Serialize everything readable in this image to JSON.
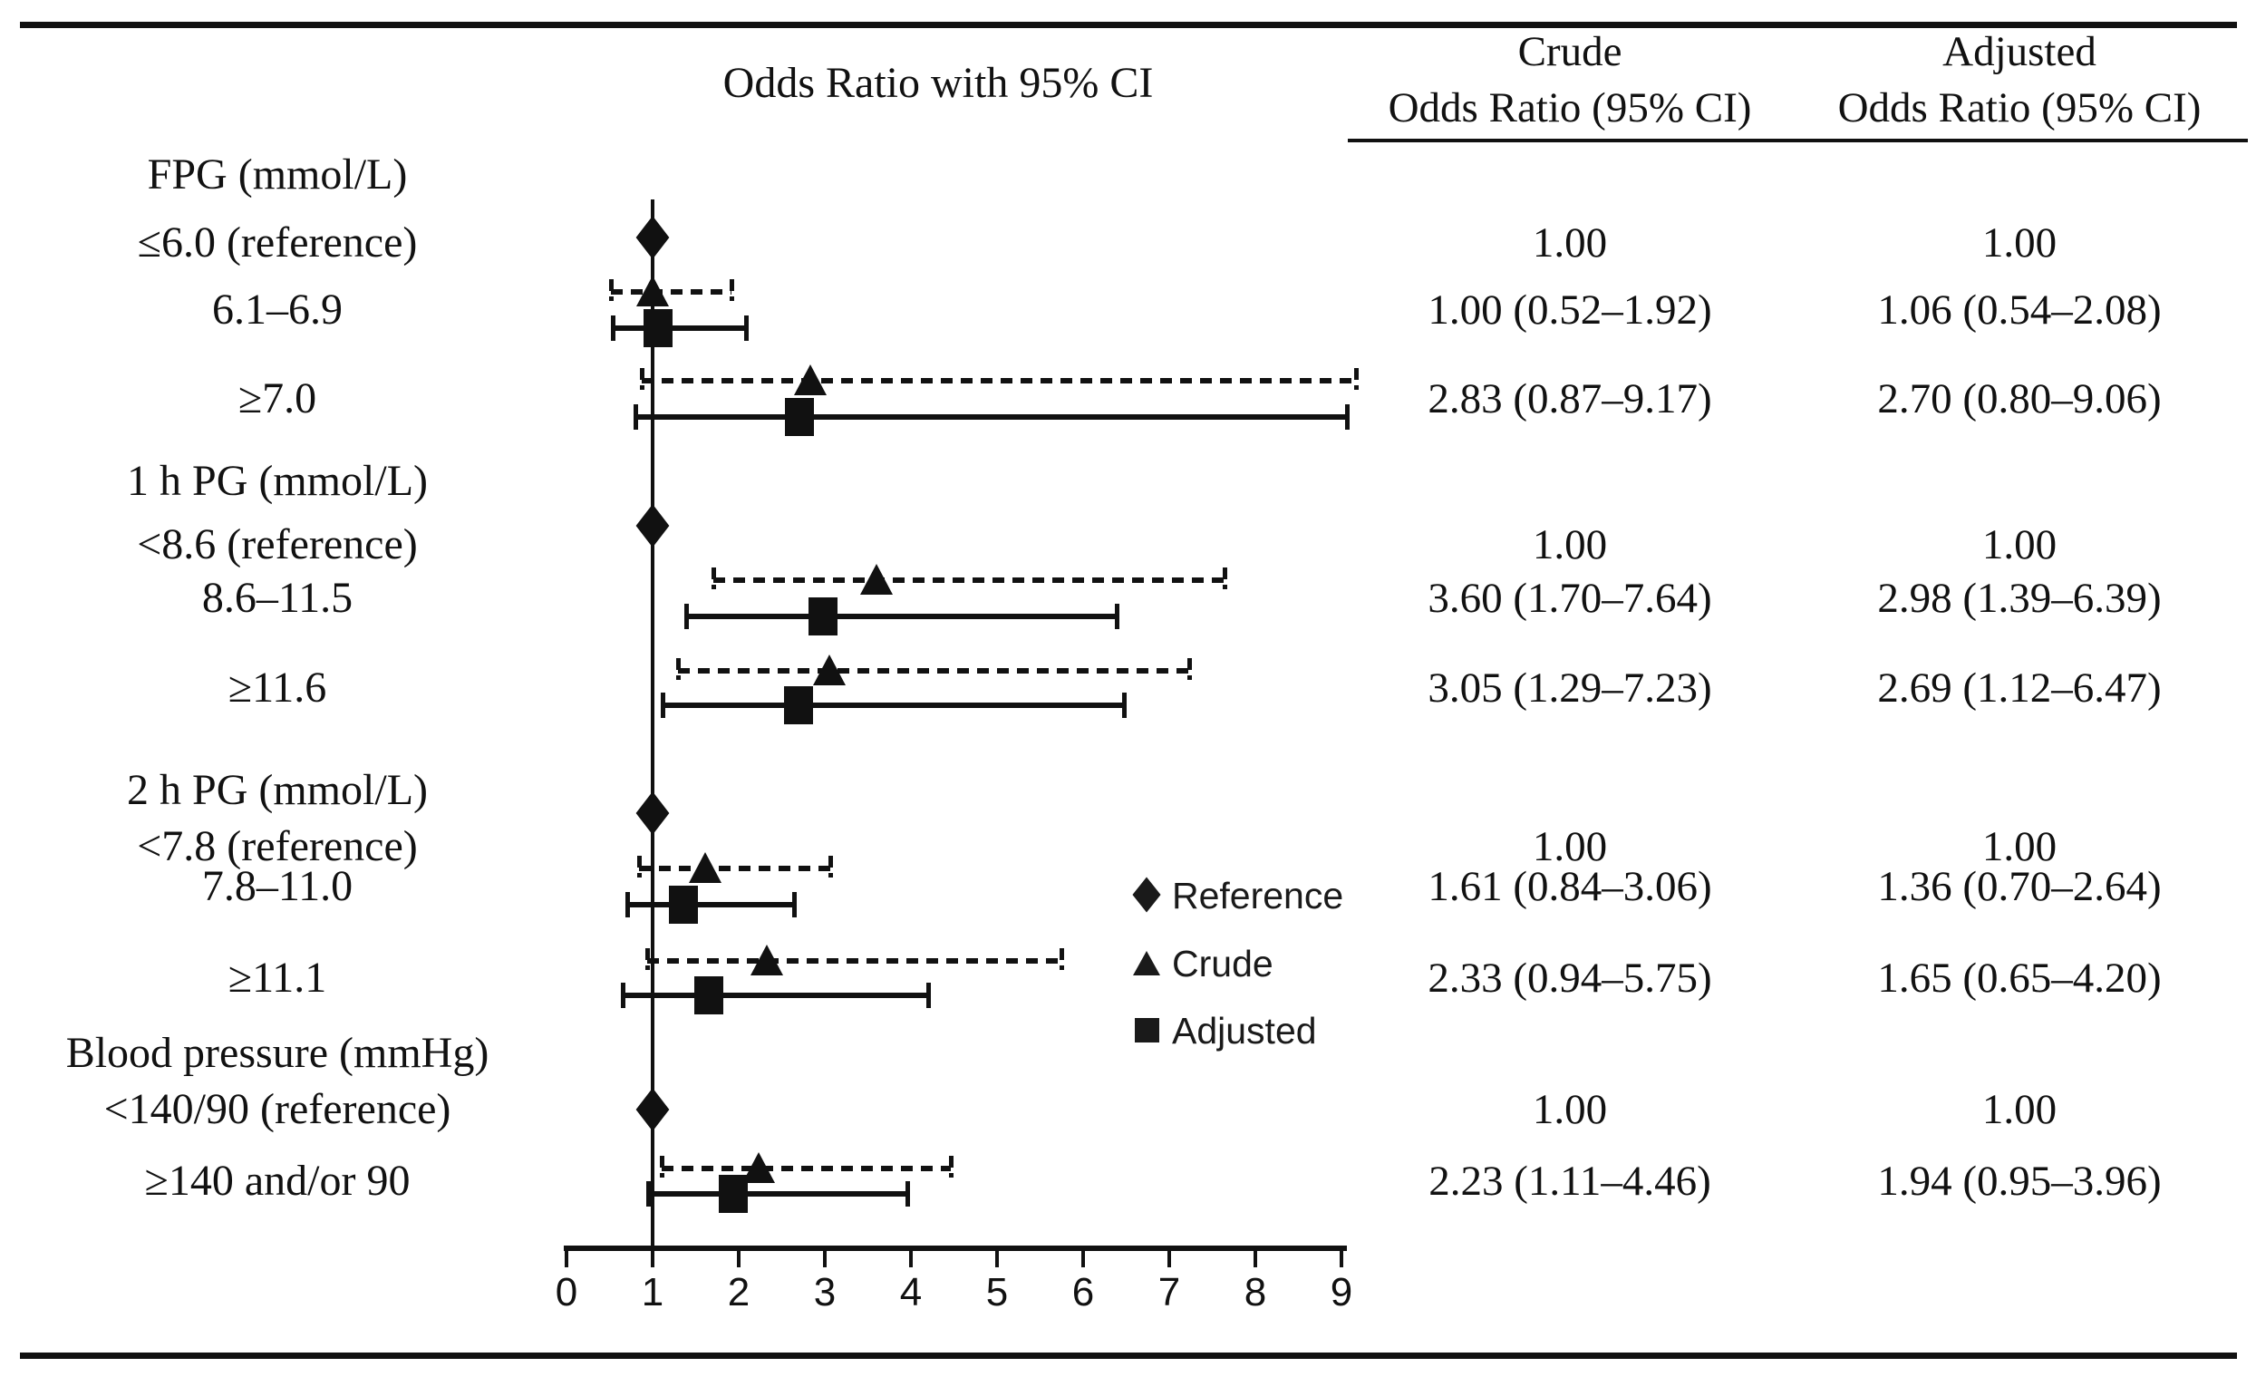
{
  "figure": {
    "title": "Odds Ratio with 95% CI"
  },
  "colors": {
    "ink": "#111111",
    "background": "#ffffff"
  },
  "chart_data": {
    "type": "forest",
    "title": "Odds Ratio with 95% CI",
    "xlabel": "",
    "ylabel": "",
    "grid": false,
    "x_axis": {
      "min": 0,
      "max": 9,
      "tick_labels": [
        "0",
        "1",
        "2",
        "3",
        "4",
        "5",
        "6",
        "7",
        "8",
        "9"
      ]
    },
    "reference_or": 1.0,
    "legend_position": "inside-lower-middle",
    "legend": [
      {
        "marker": "diamond",
        "label": "Reference"
      },
      {
        "marker": "triangle",
        "label": "Crude"
      },
      {
        "marker": "square",
        "label": "Adjusted"
      }
    ],
    "columns": {
      "crude": [
        "Crude",
        "Odds Ratio (95% CI)"
      ],
      "adjusted": [
        "Adjusted",
        "Odds Ratio (95% CI)"
      ]
    },
    "groups": [
      {
        "label": "FPG (mmol/L)",
        "rows": [
          {
            "label": "≤6.0 (reference)",
            "reference": true,
            "crude_text": "1.00",
            "adjusted_text": "1.00"
          },
          {
            "label": "6.1–6.9",
            "crude": {
              "or": 1.0,
              "lo": 0.52,
              "hi": 1.92
            },
            "adjusted": {
              "or": 1.06,
              "lo": 0.54,
              "hi": 2.08
            },
            "crude_text": "1.00 (0.52–1.92)",
            "adjusted_text": "1.06 (0.54–2.08)"
          },
          {
            "label": "≥7.0",
            "crude": {
              "or": 2.83,
              "lo": 0.87,
              "hi": 9.17
            },
            "adjusted": {
              "or": 2.7,
              "lo": 0.8,
              "hi": 9.06
            },
            "crude_text": "2.83 (0.87–9.17)",
            "adjusted_text": "2.70 (0.80–9.06)"
          }
        ]
      },
      {
        "label": "1 h PG (mmol/L)",
        "rows": [
          {
            "label": "<8.6 (reference)",
            "reference": true,
            "crude_text": "1.00",
            "adjusted_text": "1.00"
          },
          {
            "label": "8.6–11.5",
            "crude": {
              "or": 3.6,
              "lo": 1.7,
              "hi": 7.64
            },
            "adjusted": {
              "or": 2.98,
              "lo": 1.39,
              "hi": 6.39
            },
            "crude_text": "3.60 (1.70–7.64)",
            "adjusted_text": "2.98 (1.39–6.39)"
          },
          {
            "label": "≥11.6",
            "crude": {
              "or": 3.05,
              "lo": 1.29,
              "hi": 7.23
            },
            "adjusted": {
              "or": 2.69,
              "lo": 1.12,
              "hi": 6.47
            },
            "crude_text": "3.05 (1.29–7.23)",
            "adjusted_text": "2.69 (1.12–6.47)"
          }
        ]
      },
      {
        "label": "2 h PG (mmol/L)",
        "rows": [
          {
            "label": "<7.8 (reference)",
            "reference": true,
            "crude_text": "1.00",
            "adjusted_text": "1.00"
          },
          {
            "label": "7.8–11.0",
            "crude": {
              "or": 1.61,
              "lo": 0.84,
              "hi": 3.06
            },
            "adjusted": {
              "or": 1.36,
              "lo": 0.7,
              "hi": 2.64
            },
            "crude_text": "1.61 (0.84–3.06)",
            "adjusted_text": "1.36 (0.70–2.64)"
          },
          {
            "label": "≥11.1",
            "crude": {
              "or": 2.33,
              "lo": 0.94,
              "hi": 5.75
            },
            "adjusted": {
              "or": 1.65,
              "lo": 0.65,
              "hi": 4.2
            },
            "crude_text": "2.33 (0.94–5.75)",
            "adjusted_text": "1.65 (0.65–4.20)"
          }
        ]
      },
      {
        "label": "Blood pressure (mmHg)",
        "rows": [
          {
            "label": "<140/90 (reference)",
            "reference": true,
            "crude_text": "1.00",
            "adjusted_text": "1.00"
          },
          {
            "label": "≥140 and/or 90",
            "crude": {
              "or": 2.23,
              "lo": 1.11,
              "hi": 4.46
            },
            "adjusted": {
              "or": 1.94,
              "lo": 0.95,
              "hi": 3.96
            },
            "crude_text": "2.23 (1.11–4.46)",
            "adjusted_text": "1.94 (0.95–3.96)"
          }
        ]
      }
    ]
  }
}
